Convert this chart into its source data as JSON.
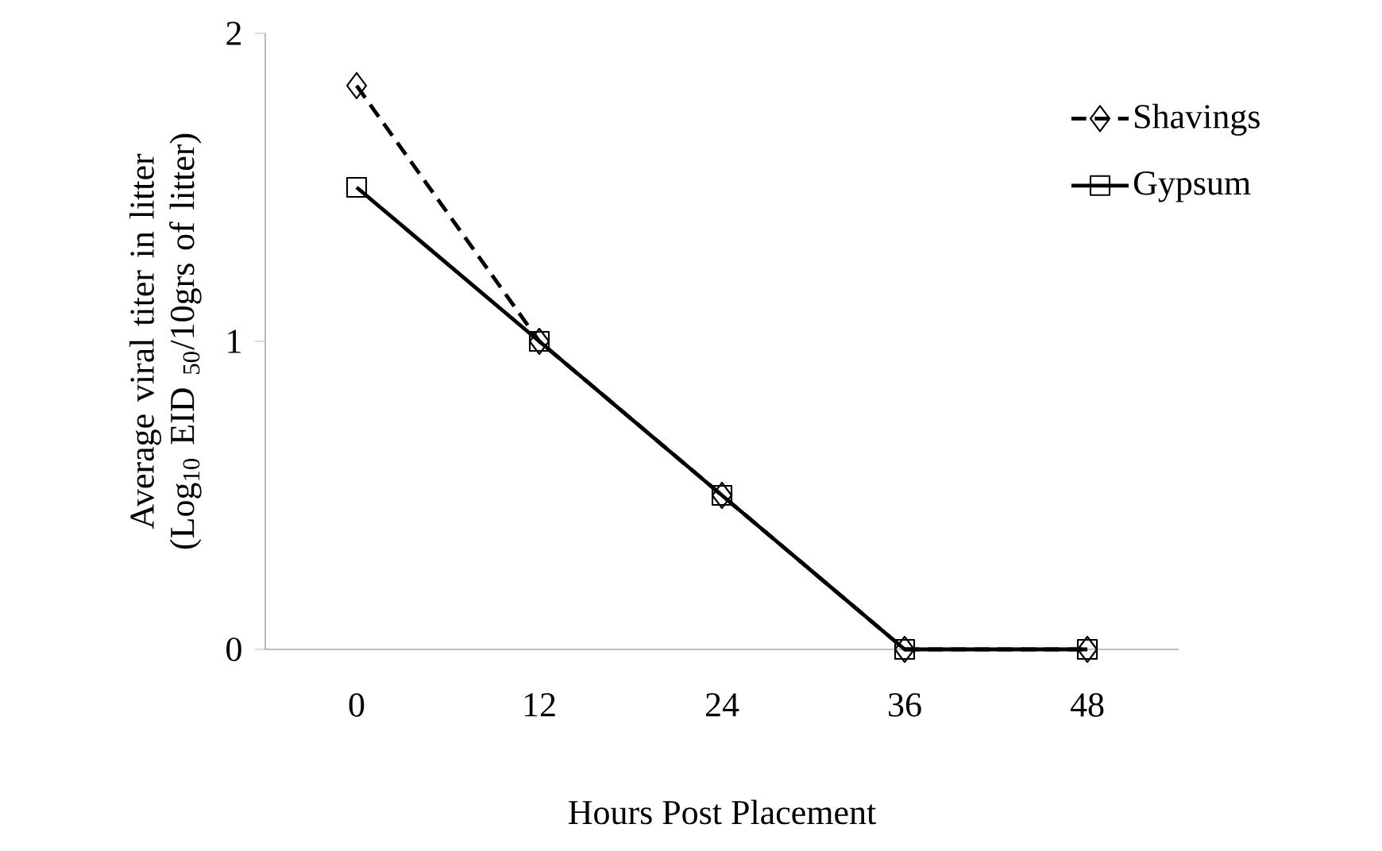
{
  "chart_data": {
    "type": "line",
    "xlabel": "Hours Post Placement",
    "ylabel": "Average viral titer in litter (Log$_{10}$ EID $_{50}$/10grs of litter)",
    "categories": [
      "0",
      "12",
      "24",
      "36",
      "48"
    ],
    "series": [
      {
        "name": "Shavings",
        "color": "#000000",
        "values": [
          1.83,
          1.0,
          0.5,
          0.0,
          0.0
        ],
        "marker": "diamond",
        "line_style": "dashed"
      },
      {
        "name": "Gypsum",
        "color": "#000000",
        "values": [
          1.5,
          1.0,
          0.5,
          0.0,
          0.0
        ],
        "marker": "square",
        "line_style": "solid"
      }
    ],
    "ylim": [
      0,
      2
    ],
    "yticks": [
      0,
      1,
      2
    ],
    "grid": false,
    "legend": "top right"
  }
}
